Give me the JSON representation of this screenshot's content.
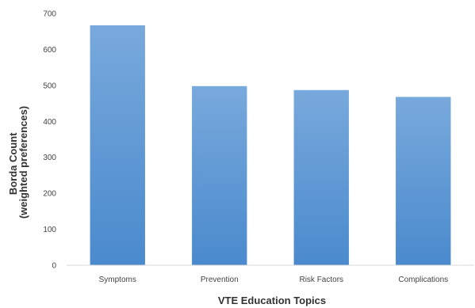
{
  "chart_data": {
    "type": "bar",
    "title": "",
    "xlabel": "VTE Education Topics",
    "ylabel_lines": [
      "Borda Count",
      "(weighted preferences)"
    ],
    "categories": [
      "Symptoms",
      "Prevention",
      "Risk Factors",
      "Complications"
    ],
    "values": [
      667,
      498,
      487,
      468
    ],
    "ylim": [
      0,
      700
    ],
    "yticks": [
      0,
      100,
      200,
      300,
      400,
      500,
      600,
      700
    ],
    "grid": false,
    "legend": "none",
    "colors": {
      "bar_top": "#78a9dc",
      "bar_bottom": "#4a8acd",
      "axis": "#d9d9d9"
    }
  }
}
